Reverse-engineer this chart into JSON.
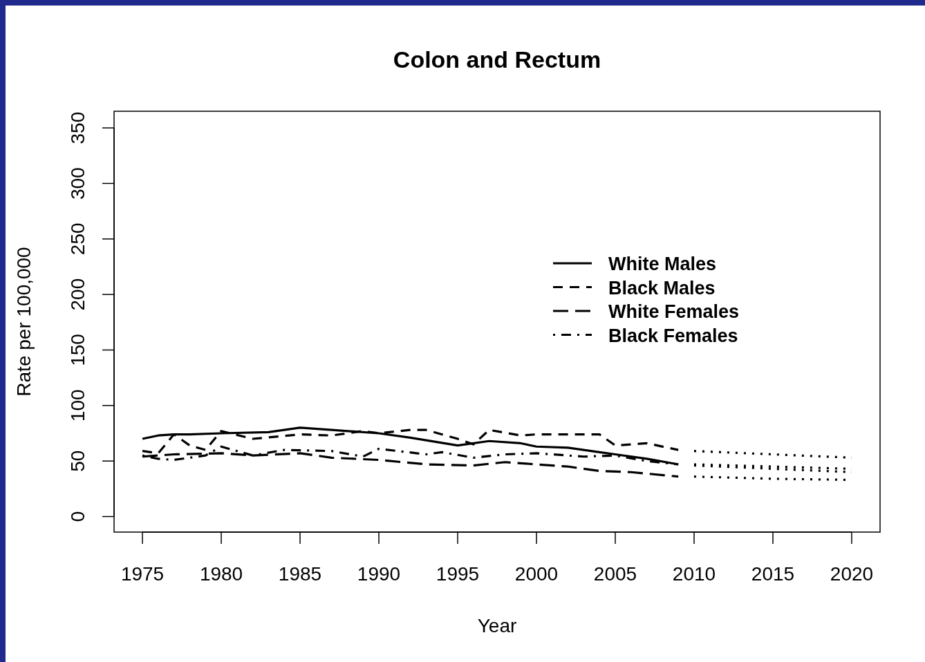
{
  "chart_data": {
    "type": "line",
    "title": "Colon and Rectum",
    "xlabel": "Year",
    "ylabel": "Rate per 100,000",
    "xlim": [
      1973.2,
      2021.8
    ],
    "xticks": [
      1975,
      1980,
      1985,
      1990,
      1995,
      2000,
      2005,
      2010,
      2015,
      2020
    ],
    "ylim": [
      -14,
      365
    ],
    "yticks": [
      0,
      50,
      100,
      150,
      200,
      250,
      300,
      350
    ],
    "grid": false,
    "legend": "right",
    "series": [
      {
        "name": "White Males",
        "color": "#000000",
        "line_style": "solid",
        "x": [
          1975,
          1976,
          1977,
          1978,
          1980,
          1983,
          1985,
          1987,
          1990,
          1992,
          1995,
          1997,
          1999,
          2000,
          2002,
          2004,
          2005,
          2007,
          2009
        ],
        "values": [
          70,
          73,
          74,
          74,
          75,
          76,
          80,
          78,
          75,
          71,
          64,
          68,
          66,
          63,
          62,
          58,
          56,
          52,
          47
        ]
      },
      {
        "name": "Black Males",
        "color": "#000000",
        "line_style": "dashed",
        "x": [
          1975,
          1976,
          1977,
          1978,
          1979,
          1980,
          1982,
          1985,
          1987,
          1989,
          1990,
          1992,
          1993,
          1995,
          1996,
          1997,
          1999,
          2000,
          2004,
          2005,
          2007,
          2009
        ],
        "values": [
          59,
          57,
          74,
          64,
          60,
          77,
          70,
          74,
          73,
          77,
          75,
          78,
          78,
          70,
          65,
          78,
          73,
          74,
          74,
          64,
          66,
          60
        ]
      },
      {
        "name": "White Females",
        "color": "#000000",
        "line_style": "longdash",
        "x": [
          1975,
          1977,
          1980,
          1982,
          1985,
          1987,
          1990,
          1993,
          1996,
          1998,
          2000,
          2002,
          2004,
          2006,
          2009
        ],
        "values": [
          54,
          56,
          57,
          55,
          57,
          53,
          51,
          47,
          46,
          49,
          47,
          45,
          41,
          40,
          36
        ]
      },
      {
        "name": "Black Females",
        "color": "#000000",
        "line_style": "dotdash",
        "x": [
          1975,
          1976,
          1977,
          1979,
          1980,
          1982,
          1984,
          1987,
          1989,
          1990,
          1993,
          1994,
          1996,
          1998,
          2000,
          2003,
          2005,
          2007,
          2009
        ],
        "values": [
          55,
          52,
          51,
          55,
          63,
          55,
          60,
          59,
          54,
          61,
          56,
          58,
          53,
          56,
          57,
          54,
          55,
          50,
          47
        ]
      },
      {
        "color": "#000000",
        "line_style": "dotted",
        "x": [
          2010,
          2015,
          2020
        ],
        "values": [
          59,
          56,
          53
        ]
      },
      {
        "color": "#000000",
        "line_style": "dotted",
        "x": [
          2010,
          2015,
          2020
        ],
        "values": [
          47,
          45,
          43
        ]
      },
      {
        "color": "#000000",
        "line_style": "dotted",
        "x": [
          2010,
          2015,
          2020
        ],
        "values": [
          46,
          43,
          40
        ]
      },
      {
        "color": "#000000",
        "line_style": "dotted",
        "x": [
          2010,
          2015,
          2020
        ],
        "values": [
          36,
          34,
          33
        ]
      }
    ]
  }
}
